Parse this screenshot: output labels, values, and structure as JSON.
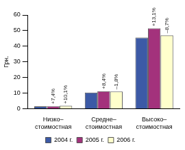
{
  "chart_data": {
    "type": "bar",
    "categories": [
      [
        "Низко–",
        "стоимостная"
      ],
      [
        "Средне–",
        "стоимостная"
      ],
      [
        "Высоко–",
        "стоимостная"
      ]
    ],
    "series": [
      {
        "name": "2004 г.",
        "color": "#3c5aa6",
        "values": [
          1.5,
          10.3,
          45.5
        ]
      },
      {
        "name": "2005 г.",
        "color": "#a3327c",
        "values": [
          1.6,
          11.2,
          51.5
        ]
      },
      {
        "name": "2006 г.",
        "color": "#ffffcc",
        "values": [
          1.8,
          11.0,
          47.0
        ]
      }
    ],
    "y_label": "Грн.",
    "ylim": [
      0,
      60
    ],
    "yticks": [
      0,
      10,
      20,
      30,
      40,
      50,
      60
    ],
    "grid": false,
    "legend": "bottom",
    "annotations": [
      {
        "text": "+7,4%",
        "category": 0,
        "series": 1
      },
      {
        "text": "+10,1%",
        "category": 0,
        "series": 2
      },
      {
        "text": "+8,4%",
        "category": 1,
        "series": 1
      },
      {
        "text": "–1,8%",
        "category": 1,
        "series": 2
      },
      {
        "text": "+13,1%",
        "category": 2,
        "series": 1
      },
      {
        "text": "–8,7%",
        "category": 2,
        "series": 2
      }
    ]
  }
}
